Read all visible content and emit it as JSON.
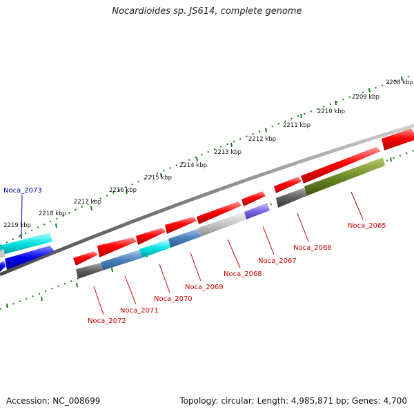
{
  "title": "Nocardioides sp. JS614, complete genome",
  "footer": {
    "accession": "Accession: NC_008699",
    "topology": "Topology: circular; Length: 4,985,871 bp; Genes: 4,700"
  },
  "colors": {
    "cds": "#ff0000",
    "backbone": "#7f7f7f",
    "ticks": "#1a7a1a",
    "label_red": "#cc0000",
    "label_blue": "#0000aa"
  },
  "axis_labels": [
    "2208 kbp",
    "2209 kbp",
    "2210 kbp",
    "2211 kbp",
    "2212 kbp",
    "2213 kbp",
    "2214 kbp",
    "2215 kbp",
    "2216 kbp",
    "2217 kbp",
    "2218 kbp",
    "2219 kbp"
  ],
  "gene_labels": [
    {
      "text": "Noca_2065",
      "color": "red"
    },
    {
      "text": "Noca_2066",
      "color": "red"
    },
    {
      "text": "Noca_2067",
      "color": "red"
    },
    {
      "text": "Noca_2068",
      "color": "red"
    },
    {
      "text": "Noca_2069",
      "color": "red"
    },
    {
      "text": "Noca_2070",
      "color": "red"
    },
    {
      "text": "Noca_2071",
      "color": "red"
    },
    {
      "text": "Noca_2072",
      "color": "red"
    },
    {
      "text": "Noca_2073",
      "color": "blue"
    }
  ]
}
